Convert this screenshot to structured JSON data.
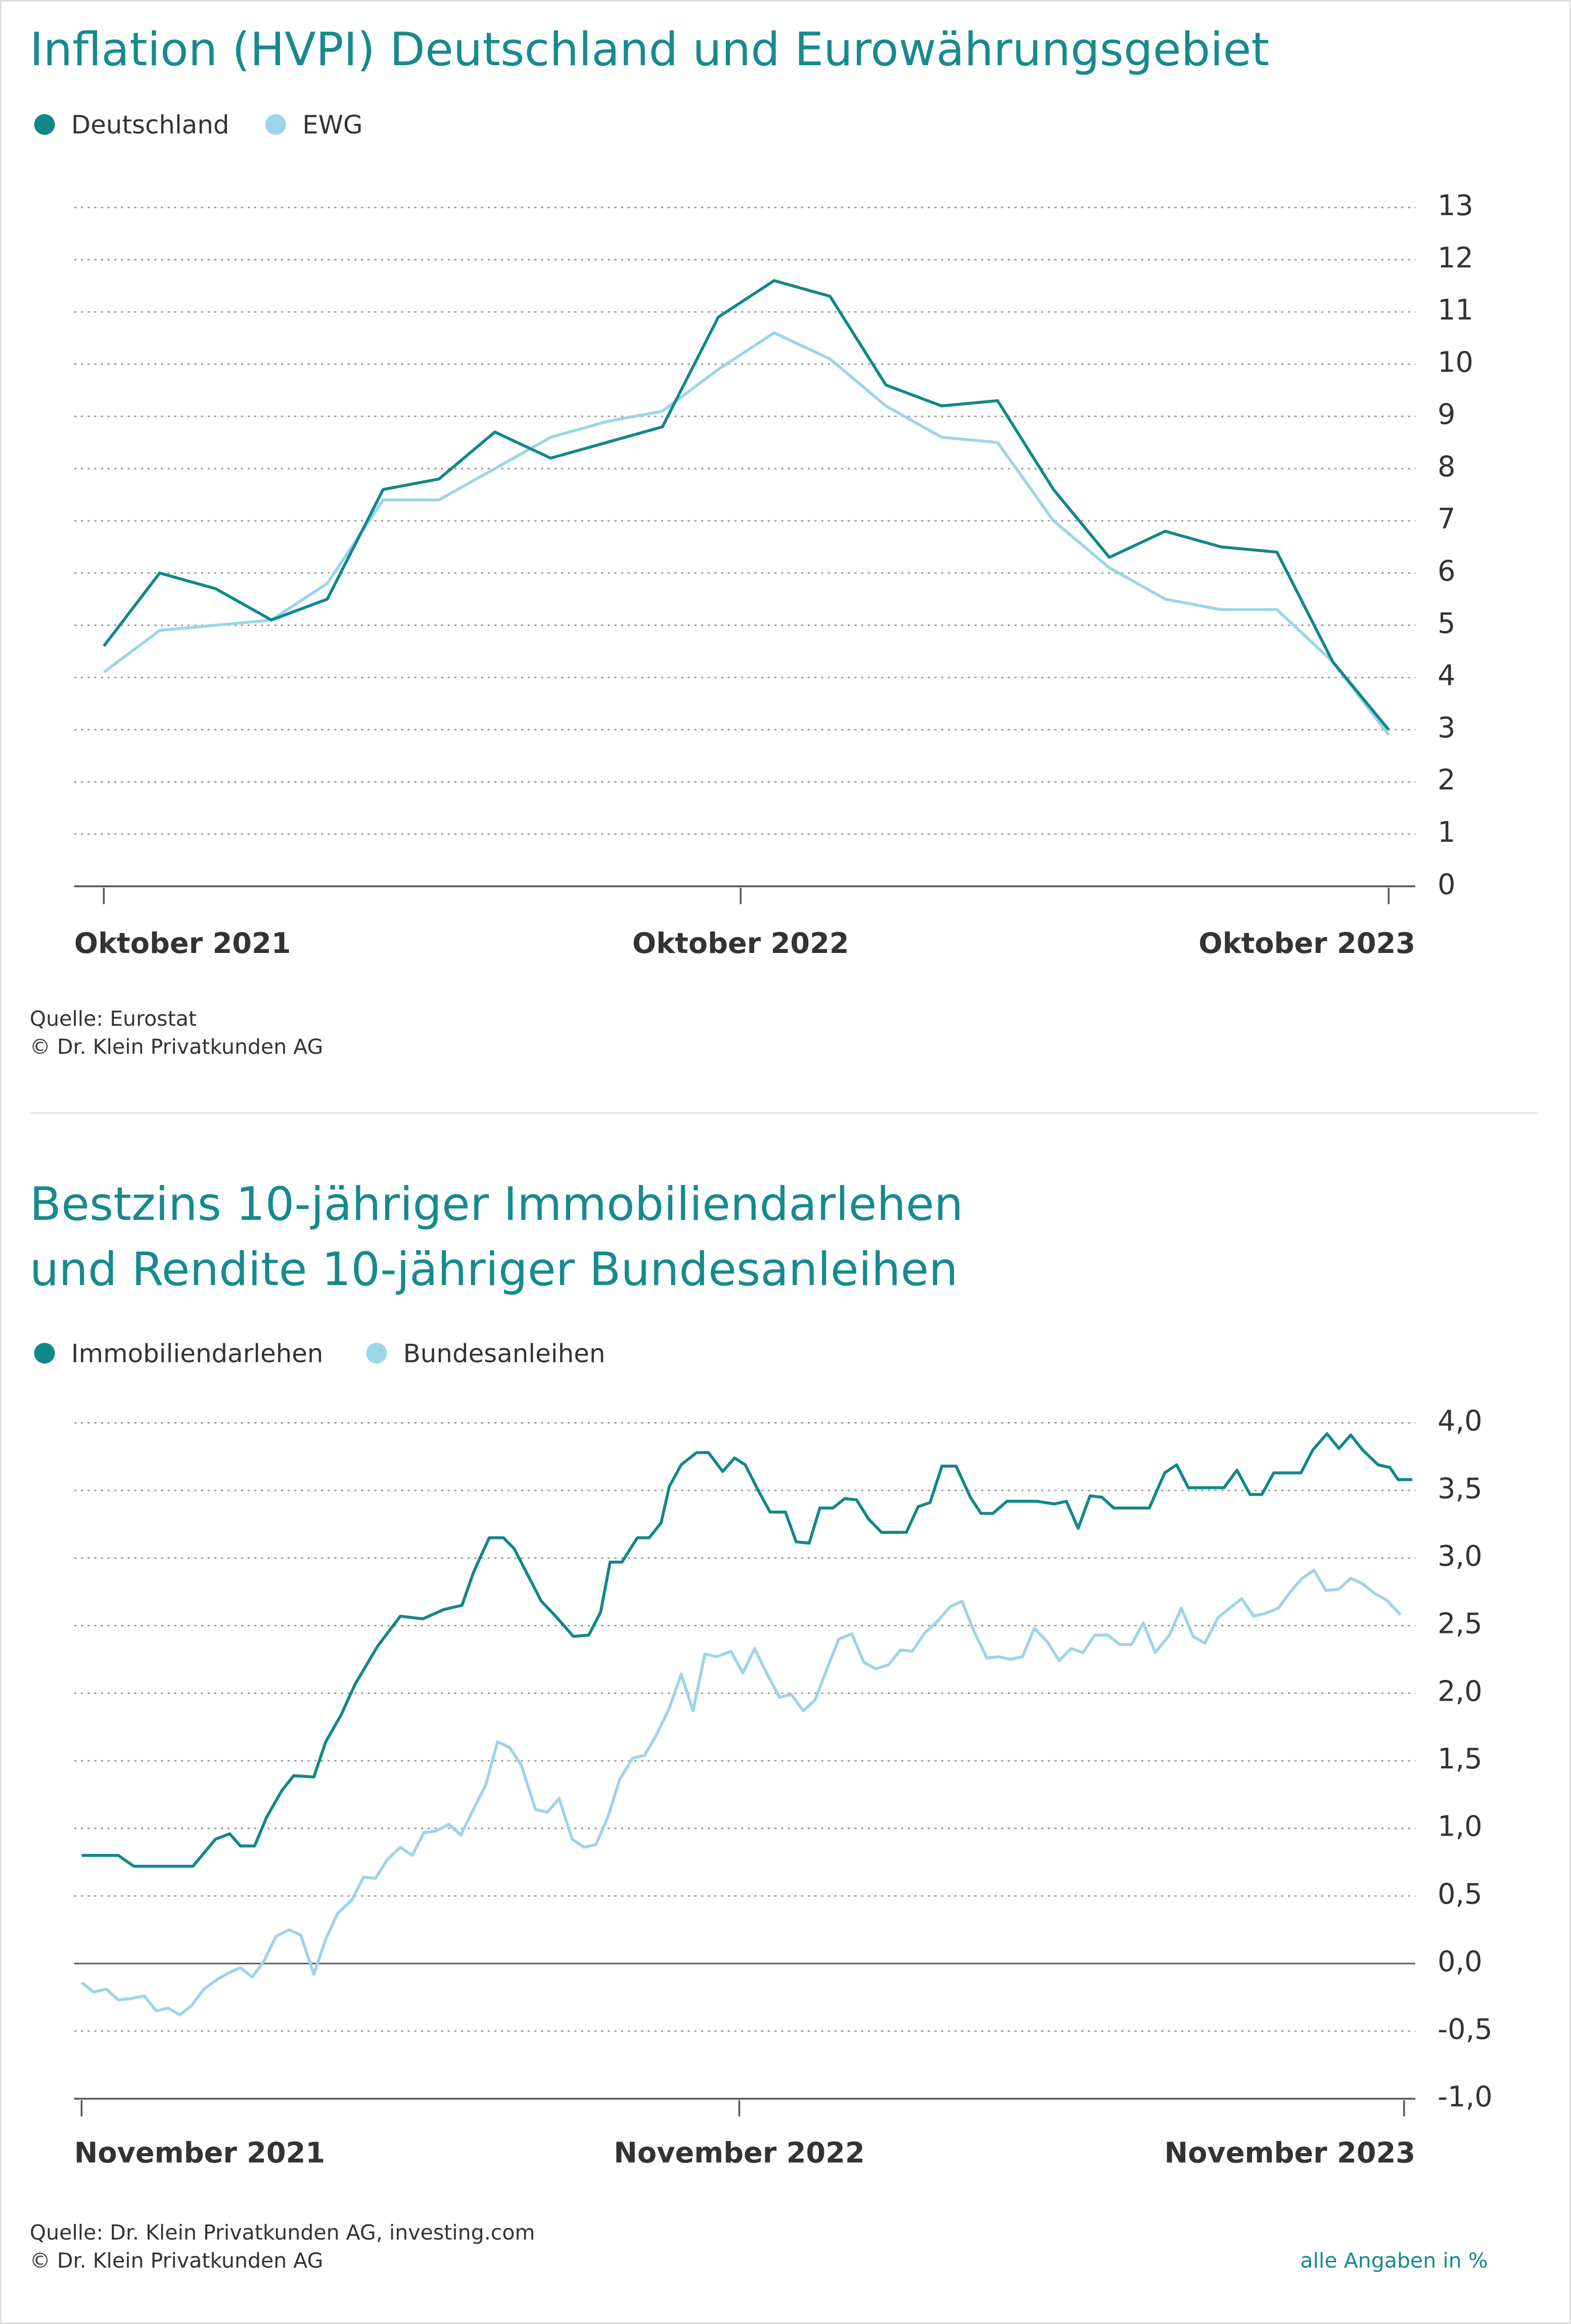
{
  "chart_data": [
    {
      "type": "line",
      "title": [
        "Inflation (HVPI) Deutschland und Eurowährungsgebiet"
      ],
      "x": [
        0,
        1,
        2,
        3,
        4,
        5,
        6,
        7,
        8,
        9,
        10,
        11,
        12,
        13,
        14,
        15,
        16,
        17,
        18,
        19,
        20,
        21,
        22,
        23
      ],
      "xlim": [
        0,
        23
      ],
      "xticks": [
        {
          "value": 0,
          "label": "Oktober 2021"
        },
        {
          "value": 11.4,
          "label": "Oktober 2022"
        },
        {
          "value": 23,
          "label": "Oktober 2023"
        }
      ],
      "series": [
        {
          "name": "Deutschland",
          "color": "#12878a",
          "values": [
            4.6,
            6.0,
            5.7,
            5.1,
            5.5,
            7.6,
            7.8,
            8.7,
            8.2,
            8.5,
            8.8,
            10.9,
            11.6,
            11.3,
            9.6,
            9.2,
            9.3,
            7.6,
            6.3,
            6.8,
            6.5,
            6.4,
            4.3,
            3.0
          ]
        },
        {
          "name": "EWG",
          "color": "#9cd4ea",
          "values": [
            4.1,
            4.9,
            5.0,
            5.1,
            5.8,
            7.4,
            7.4,
            8.0,
            8.6,
            8.9,
            9.1,
            9.9,
            10.6,
            10.1,
            9.2,
            8.6,
            8.5,
            7.0,
            6.1,
            5.5,
            5.3,
            5.3,
            4.3,
            2.9
          ]
        }
      ],
      "ylim": [
        0,
        13
      ],
      "yticks": [
        0,
        1,
        2,
        3,
        4,
        5,
        6,
        7,
        8,
        9,
        10,
        11,
        12,
        13
      ],
      "grid": true,
      "source": "Quelle: Eurostat",
      "copyright": "© Dr. Klein Privatkunden AG"
    },
    {
      "type": "line",
      "title": [
        "Bestzins 10-jähriger Immobiliendarlehen",
        "und Rendite 10-jähriger Bundesanleihen"
      ],
      "xlim": [
        0,
        112.3
      ],
      "xticks": [
        {
          "value": 0,
          "label": "November 2021"
        },
        {
          "value": 55.5,
          "label": "November 2022"
        },
        {
          "value": 111.6,
          "label": "November 2023"
        }
      ],
      "series": [
        {
          "name": "Immobiliendarlehen",
          "color": "#12878a",
          "x": [
            0,
            3.1,
            4.4,
            9.4,
            11.3,
            12.5,
            13.4,
            14.6,
            15.6,
            16.9,
            17.9,
            19.6,
            20.6,
            21.9,
            23.1,
            25,
            26.9,
            28.8,
            30.6,
            32.1,
            33.1,
            34.4,
            35.6,
            36.5,
            37.5,
            38.8,
            40,
            41.5,
            42.8,
            43.8,
            44.6,
            45.6,
            46.9,
            47.9,
            48.9,
            49.6,
            50.6,
            51.9,
            52.9,
            54.1,
            55.1,
            56,
            57.1,
            58.1,
            59.4,
            60.3,
            61.4,
            62.3,
            63.4,
            64.4,
            65.4,
            66.4,
            67.5,
            69.6,
            70.6,
            71.6,
            72.6,
            73.8,
            75,
            75.9,
            76.9,
            78.1,
            80.6,
            82.1,
            83.1,
            84.1,
            85.1,
            86.1,
            87.1,
            90.1,
            91.4,
            92.4,
            93.4,
            96.4,
            97.5,
            98.6,
            99.6,
            100.6,
            102.9,
            103.9,
            105.1,
            106.1,
            107.1,
            108.1,
            109.4,
            110.4,
            111.1,
            112.3
          ],
          "values": [
            0.8,
            0.8,
            0.72,
            0.72,
            0.92,
            0.96,
            0.87,
            0.87,
            1.08,
            1.28,
            1.39,
            1.38,
            1.64,
            1.84,
            2.07,
            2.35,
            2.57,
            2.55,
            2.62,
            2.65,
            2.9,
            3.15,
            3.15,
            3.07,
            2.9,
            2.68,
            2.57,
            2.42,
            2.43,
            2.6,
            2.97,
            2.97,
            3.15,
            3.15,
            3.26,
            3.53,
            3.69,
            3.78,
            3.78,
            3.64,
            3.74,
            3.69,
            3.5,
            3.34,
            3.34,
            3.12,
            3.11,
            3.37,
            3.37,
            3.44,
            3.43,
            3.29,
            3.19,
            3.19,
            3.38,
            3.41,
            3.68,
            3.68,
            3.45,
            3.33,
            3.33,
            3.42,
            3.42,
            3.4,
            3.42,
            3.22,
            3.46,
            3.45,
            3.37,
            3.37,
            3.63,
            3.69,
            3.52,
            3.52,
            3.65,
            3.47,
            3.47,
            3.63,
            3.63,
            3.8,
            3.92,
            3.81,
            3.91,
            3.8,
            3.69,
            3.67,
            3.58,
            3.58
          ]
        },
        {
          "name": "Bundesanleihen",
          "color": "#9cd4ea",
          "x": [
            0,
            1,
            2.1,
            3.1,
            4.1,
            5.3,
            6.3,
            7.3,
            8.3,
            9.3,
            10.3,
            11.4,
            12.4,
            13.4,
            14.4,
            15.4,
            16.4,
            17.5,
            18.5,
            19.6,
            20.6,
            21.6,
            22.8,
            23.8,
            24.8,
            25.8,
            26.9,
            27.9,
            28.9,
            29.9,
            31,
            32,
            33,
            34.1,
            35.1,
            36.1,
            37.1,
            38.3,
            39.3,
            40.3,
            41.4,
            42.4,
            43.4,
            44.4,
            45.4,
            46.5,
            47.5,
            48.5,
            49.6,
            50.6,
            51.6,
            52.6,
            53.6,
            54.8,
            55.8,
            56.8,
            57.8,
            58.9,
            59.9,
            60.9,
            61.9,
            62.9,
            63.9,
            65,
            66,
            67,
            68.1,
            69.1,
            70.1,
            71.1,
            72.3,
            73.3,
            74.3,
            75.3,
            76.4,
            77.4,
            78.4,
            79.4,
            80.4,
            81.5,
            82.5,
            83.5,
            84.5,
            85.5,
            86.6,
            87.6,
            88.6,
            89.6,
            90.6,
            91.8,
            92.8,
            93.8,
            94.8,
            95.9,
            96.9,
            97.9,
            98.9,
            99.9,
            101,
            102,
            103,
            104,
            105,
            106.1,
            107.1,
            108.1,
            109.1,
            110.1,
            111.3
          ],
          "values": [
            -0.14,
            -0.21,
            -0.19,
            -0.27,
            -0.26,
            -0.24,
            -0.35,
            -0.33,
            -0.38,
            -0.31,
            -0.19,
            -0.12,
            -0.07,
            -0.03,
            -0.1,
            0.02,
            0.2,
            0.25,
            0.21,
            -0.08,
            0.18,
            0.37,
            0.47,
            0.64,
            0.63,
            0.77,
            0.86,
            0.8,
            0.97,
            0.98,
            1.03,
            0.95,
            1.13,
            1.32,
            1.64,
            1.6,
            1.47,
            1.14,
            1.12,
            1.22,
            0.92,
            0.86,
            0.88,
            1.08,
            1.36,
            1.52,
            1.54,
            1.69,
            1.89,
            2.14,
            1.87,
            2.29,
            2.27,
            2.31,
            2.15,
            2.33,
            2.15,
            1.97,
            1.99,
            1.87,
            1.95,
            2.18,
            2.4,
            2.44,
            2.23,
            2.18,
            2.21,
            2.32,
            2.31,
            2.44,
            2.54,
            2.64,
            2.68,
            2.46,
            2.26,
            2.27,
            2.25,
            2.27,
            2.48,
            2.38,
            2.24,
            2.33,
            2.3,
            2.43,
            2.43,
            2.36,
            2.36,
            2.52,
            2.3,
            2.43,
            2.63,
            2.42,
            2.37,
            2.56,
            2.63,
            2.7,
            2.57,
            2.59,
            2.63,
            2.75,
            2.85,
            2.91,
            2.76,
            2.77,
            2.85,
            2.81,
            2.74,
            2.69,
            2.58
          ]
        }
      ],
      "ylim": [
        -1,
        4
      ],
      "yticks": [
        {
          "value": -1,
          "label": "-1,0"
        },
        {
          "value": -0.5,
          "label": "-0,5"
        },
        {
          "value": 0,
          "label": "0,0"
        },
        {
          "value": 0.5,
          "label": "0,5"
        },
        {
          "value": 1,
          "label": "1,0"
        },
        {
          "value": 1.5,
          "label": "1,5"
        },
        {
          "value": 2,
          "label": "2,0"
        },
        {
          "value": 2.5,
          "label": "2,5"
        },
        {
          "value": 3,
          "label": "3,0"
        },
        {
          "value": 3.5,
          "label": "3,5"
        },
        {
          "value": 4,
          "label": "4,0"
        }
      ],
      "grid": true,
      "source": "Quelle: Dr. Klein Privatkunden AG, investing.com",
      "copyright": "© Dr. Klein Privatkunden AG",
      "note": "alle Angaben in %"
    }
  ]
}
